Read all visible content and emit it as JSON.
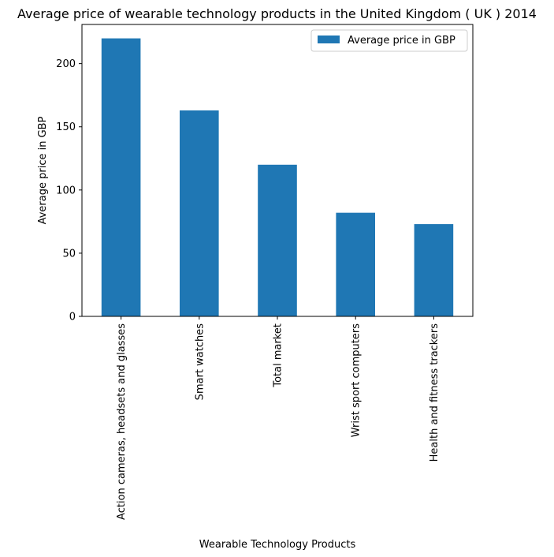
{
  "chart_data": {
    "type": "bar",
    "title": "Average price of wearable technology products in the United Kingdom ( UK ) 2014",
    "xlabel": "Wearable Technology Products",
    "ylabel": "Average price in GBP",
    "categories": [
      "Action cameras, headsets and glasses",
      "Smart watches",
      "Total market",
      "Wrist sport computers",
      "Health and fitness trackers"
    ],
    "series": [
      {
        "name": "Average price in GBP",
        "values": [
          220,
          163,
          120,
          82,
          73
        ],
        "color": "#1f77b4"
      }
    ],
    "ylim": [
      0,
      231
    ],
    "yticks": [
      0,
      50,
      100,
      150,
      200
    ],
    "grid": false,
    "legend_position": "top-right"
  }
}
